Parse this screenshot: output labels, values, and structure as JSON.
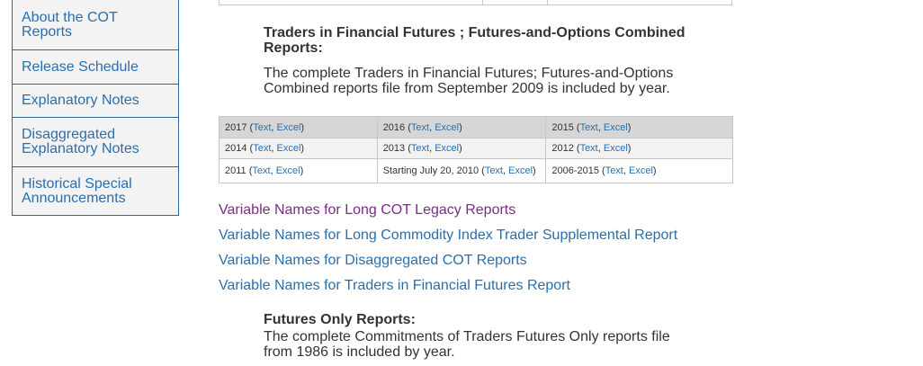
{
  "sidebar": {
    "items": [
      {
        "label": "About the COT Reports"
      },
      {
        "label": "Release Schedule"
      },
      {
        "label": "Explanatory Notes"
      },
      {
        "label": "Disaggregated Explanatory Notes"
      },
      {
        "label": "Historical Special Announcements"
      }
    ]
  },
  "tff": {
    "title": "Traders in Financial Futures ; Futures-and-Options Combined Reports:",
    "description": "The complete Traders in Financial Futures; Futures-and-Options Combined reports file from September 2009 is included by year."
  },
  "year_table": {
    "rows": [
      [
        {
          "prefix": "2017 (",
          "text": "Text",
          "sep": ", ",
          "excel": "Excel",
          "suffix": ")"
        },
        {
          "prefix": "2016 (",
          "text": "Text",
          "sep": ", ",
          "excel": "Excel",
          "suffix": ")"
        },
        {
          "prefix": "2015 (",
          "text": "Text",
          "sep": ", ",
          "excel": "Excel",
          "suffix": ")"
        }
      ],
      [
        {
          "prefix": "2014 (",
          "text": "Text",
          "sep": ", ",
          "excel": "Excel",
          "suffix": ")"
        },
        {
          "prefix": "2013 (",
          "text": "Text",
          "sep": ", ",
          "excel": "Excel",
          "suffix": ")"
        },
        {
          "prefix": "2012 (",
          "text": "Text",
          "sep": ", ",
          "excel": "Excel",
          "suffix": ")"
        }
      ],
      [
        {
          "prefix": "2011 (",
          "text": "Text",
          "sep": ", ",
          "excel": "Excel",
          "suffix": ")"
        },
        {
          "prefix": "Starting July 20, 2010 (",
          "text": "Text",
          "sep": ", ",
          "excel": "Excel",
          "suffix": ")"
        },
        {
          "prefix": "2006-2015 (",
          "text": "Text",
          "sep": ", ",
          "excel": "Excel",
          "suffix": ")"
        }
      ]
    ]
  },
  "variable_links": [
    {
      "label": "Variable Names for Long COT Legacy Reports",
      "visited": true
    },
    {
      "label": "Variable Names for Long Commodity Index Trader Supplemental Report",
      "visited": false
    },
    {
      "label": "Variable Names for Disaggregated COT Reports",
      "visited": false
    },
    {
      "label": "Variable Names for Traders in Financial Futures Report",
      "visited": false
    }
  ],
  "futures_only": {
    "title": "Futures Only Reports:",
    "description": "The complete Commitments of Traders Futures Only reports file from 1986 is included by year."
  },
  "colors": {
    "link": "#2a6fac",
    "visited_link": "#7b2c86",
    "sidebar_border": "#2c6a9e",
    "sidebar_bg": "#f3f3f3"
  }
}
